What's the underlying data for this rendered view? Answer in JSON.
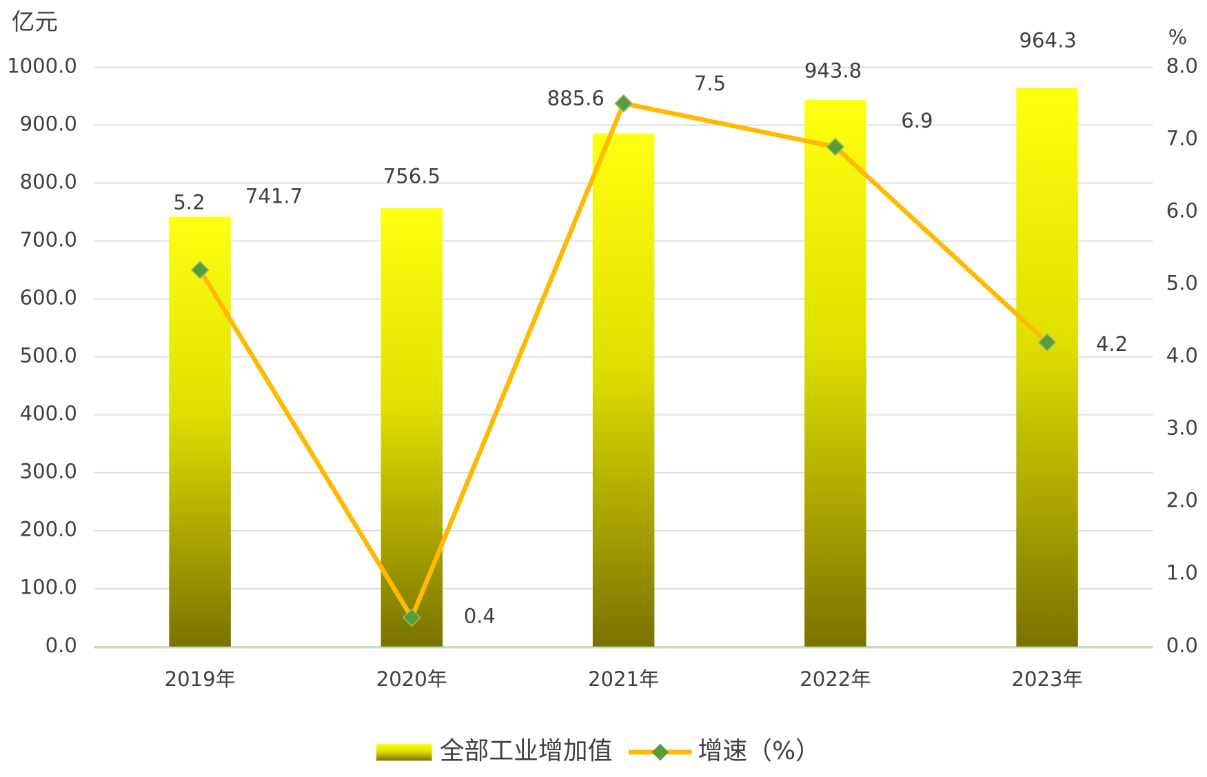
{
  "chart_data": {
    "type": "bar-line",
    "y_unit": "亿元",
    "y2_unit": "%",
    "categories": [
      "2019年",
      "2020年",
      "2021年",
      "2022年",
      "2023年"
    ],
    "series": [
      {
        "name": "全部工业增加值",
        "type": "bar",
        "color": "#f2f200",
        "values": [
          741.7,
          756.5,
          885.6,
          943.8,
          964.3
        ]
      },
      {
        "name": "增速（%）",
        "type": "line",
        "axis": "y2",
        "color": "#ffb900",
        "marker_color": "#5b9b3a",
        "values": [
          5.2,
          0.4,
          7.5,
          6.9,
          4.2
        ]
      }
    ],
    "ylim": [
      0,
      1000
    ],
    "yticks": [
      {
        "value": 0,
        "label": "0.0"
      },
      {
        "value": 100,
        "label": "100.0"
      },
      {
        "value": 200,
        "label": "200.0"
      },
      {
        "value": 300,
        "label": "300.0"
      },
      {
        "value": 400,
        "label": "400.0"
      },
      {
        "value": 500,
        "label": "500.0"
      },
      {
        "value": 600,
        "label": "600.0"
      },
      {
        "value": 700,
        "label": "700.0"
      },
      {
        "value": 800,
        "label": "800.0"
      },
      {
        "value": 900,
        "label": "900.0"
      },
      {
        "value": 1000,
        "label": "1000.0"
      }
    ],
    "y2lim": [
      0,
      8
    ],
    "y2ticks": [
      {
        "value": 0,
        "label": "0.0"
      },
      {
        "value": 1,
        "label": "1.0"
      },
      {
        "value": 2,
        "label": "2.0"
      },
      {
        "value": 3,
        "label": "3.0"
      },
      {
        "value": 4,
        "label": "4.0"
      },
      {
        "value": 5,
        "label": "5.0"
      },
      {
        "value": 6,
        "label": "6.0"
      },
      {
        "value": 7,
        "label": "7.0"
      },
      {
        "value": 8,
        "label": "8.0"
      }
    ],
    "grid": true
  }
}
